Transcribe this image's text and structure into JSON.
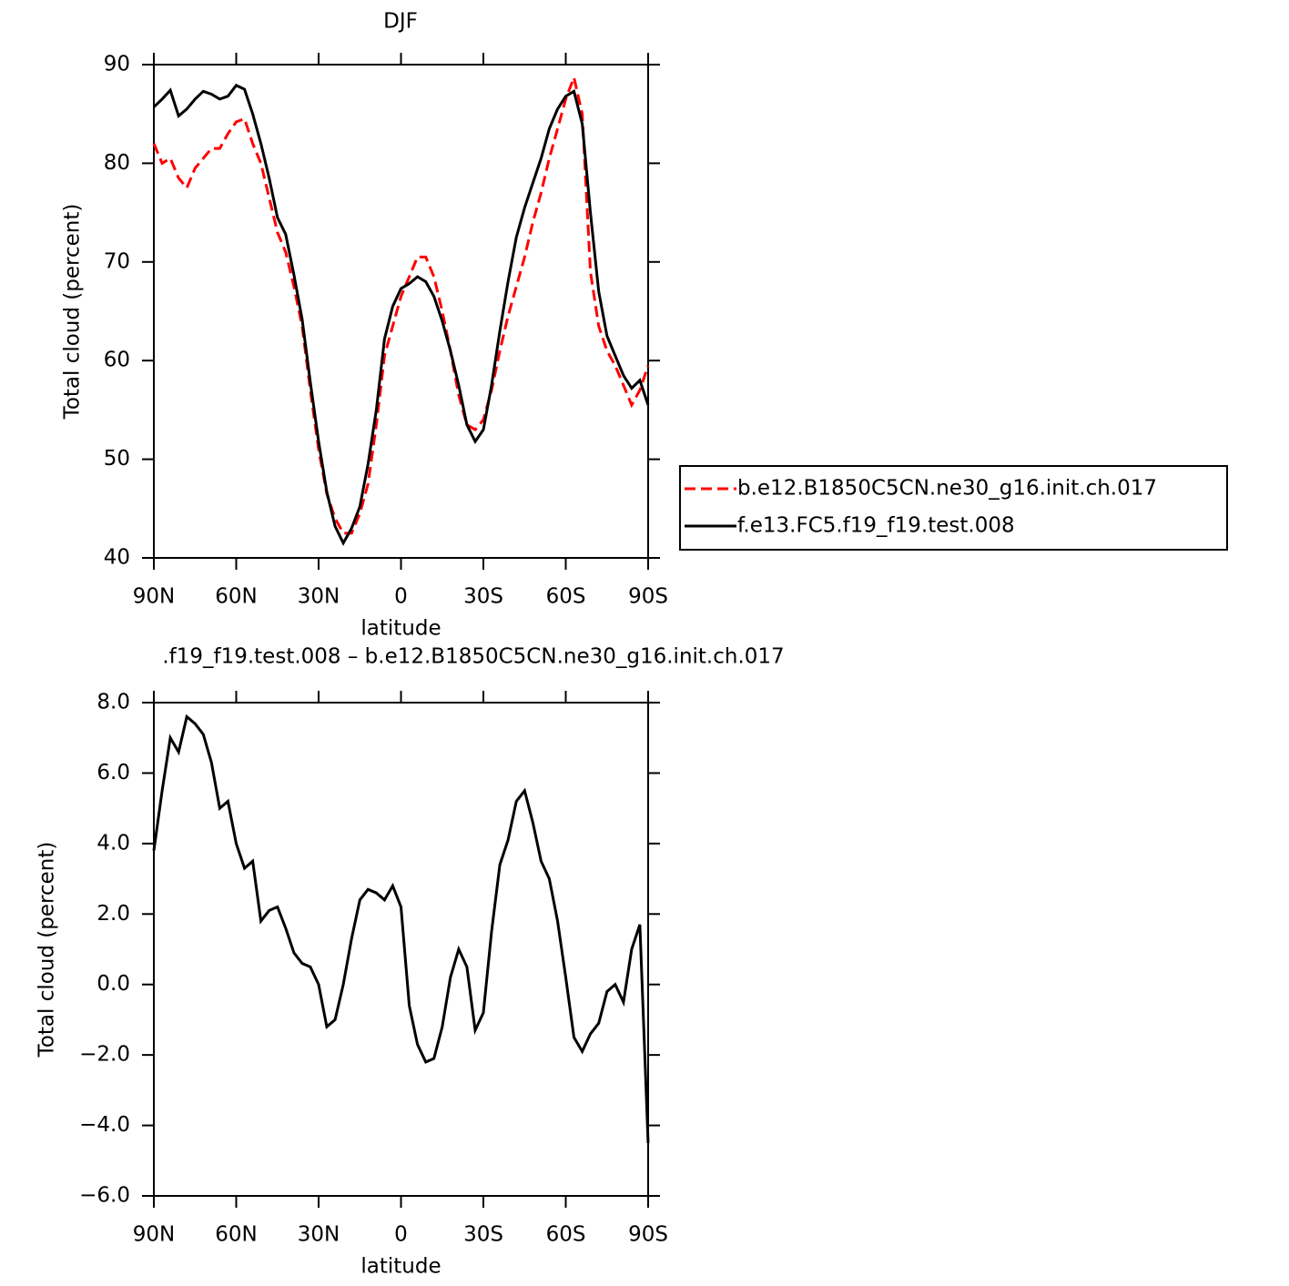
{
  "chart_data": [
    {
      "type": "line",
      "title": "DJF",
      "xlabel": "latitude",
      "ylabel": "Total cloud (percent)",
      "x": [
        90,
        87,
        84,
        81,
        78,
        75,
        72,
        69,
        66,
        63,
        60,
        57,
        54,
        51,
        48,
        45,
        42,
        39,
        36,
        33,
        30,
        27,
        24,
        21,
        18,
        15,
        12,
        9,
        6,
        3,
        0,
        -3,
        -6,
        -9,
        -12,
        -15,
        -18,
        -21,
        -24,
        -27,
        -30,
        -33,
        -36,
        -39,
        -42,
        -45,
        -48,
        -51,
        -54,
        -57,
        -60,
        -63,
        -66,
        -69,
        -72,
        -75,
        -78,
        -81,
        -84,
        -87,
        -90
      ],
      "xlim": [
        90,
        -90
      ],
      "xticks": [
        {
          "value": 90,
          "label": "90N"
        },
        {
          "value": 60,
          "label": "60N"
        },
        {
          "value": 30,
          "label": "30N"
        },
        0,
        {
          "value": -30,
          "label": "30S"
        },
        {
          "value": -60,
          "label": "60S"
        },
        {
          "value": -90,
          "label": "90S"
        }
      ],
      "ylim": [
        40,
        90
      ],
      "yticks": [
        40,
        50,
        60,
        70,
        80,
        90
      ],
      "legend": "right",
      "series": [
        {
          "name": "b.e12.B1850C5CN.ne30_g16.init.ch.017",
          "color": "#ff0000",
          "dashed": true,
          "values": [
            82,
            80,
            80.5,
            78.5,
            77.5,
            79.5,
            80.5,
            81.5,
            81.5,
            83,
            84.2,
            84.5,
            82,
            80,
            76.5,
            73,
            71,
            67.5,
            63.5,
            57,
            51,
            46.5,
            44,
            42.5,
            42.5,
            44.5,
            47.5,
            53.5,
            60.5,
            63.5,
            66.5,
            68.5,
            70.5,
            70.5,
            68.5,
            65,
            61,
            56.5,
            53.5,
            53,
            54,
            57,
            61,
            64.5,
            67.5,
            70.5,
            74,
            77,
            80.5,
            83.5,
            86.5,
            88.7,
            85,
            69,
            63.5,
            61,
            59.5,
            57.5,
            55.5,
            57,
            59.5
          ]
        },
        {
          "name": "f.e13.FC5.f19_f19.test.008",
          "color": "#000000",
          "dashed": false,
          "values": [
            85.7,
            86.5,
            87.4,
            84.8,
            85.5,
            86.5,
            87.3,
            87,
            86.5,
            86.8,
            87.9,
            87.5,
            85,
            82,
            78.5,
            74.5,
            72.8,
            68.7,
            64.2,
            57.8,
            51.8,
            46.7,
            43.2,
            41.5,
            43,
            45.2,
            49.5,
            55,
            62.2,
            65.5,
            67.3,
            67.8,
            68.5,
            68,
            66.5,
            64,
            61,
            57.5,
            53.5,
            51.8,
            53,
            57.5,
            63,
            68,
            72.5,
            75.5,
            78,
            80.5,
            83.5,
            85.5,
            86.8,
            87.3,
            84,
            75,
            67,
            62.5,
            60.5,
            58.5,
            57.2,
            58,
            55.5
          ]
        }
      ]
    },
    {
      "type": "line",
      "title": ".f19_f19.test.008 – b.e12.B1850C5CN.ne30_g16.init.ch.017",
      "xlabel": "latitude",
      "ylabel": "Total cloud (percent)",
      "x": [
        90,
        87,
        84,
        81,
        78,
        75,
        72,
        69,
        66,
        63,
        60,
        57,
        54,
        51,
        48,
        45,
        42,
        39,
        36,
        33,
        30,
        27,
        24,
        21,
        18,
        15,
        12,
        9,
        6,
        3,
        0,
        -3,
        -6,
        -9,
        -12,
        -15,
        -18,
        -21,
        -24,
        -27,
        -30,
        -33,
        -36,
        -39,
        -42,
        -45,
        -48,
        -51,
        -54,
        -57,
        -60,
        -63,
        -66,
        -69,
        -72,
        -75,
        -78,
        -81,
        -84,
        -87,
        -90
      ],
      "xlim": [
        90,
        -90
      ],
      "xticks": [
        {
          "value": 90,
          "label": "90N"
        },
        {
          "value": 60,
          "label": "60N"
        },
        {
          "value": 30,
          "label": "30N"
        },
        0,
        {
          "value": -30,
          "label": "30S"
        },
        {
          "value": -60,
          "label": "60S"
        },
        {
          "value": -90,
          "label": "90S"
        }
      ],
      "ylim": [
        -6,
        8
      ],
      "yticks": [
        {
          "value": -6,
          "label": "−6.0"
        },
        {
          "value": -4,
          "label": "−4.0"
        },
        {
          "value": -2,
          "label": "−2.0"
        },
        {
          "value": 0,
          "label": "0.0"
        },
        {
          "value": 2,
          "label": "2.0"
        },
        {
          "value": 4,
          "label": "4.0"
        },
        {
          "value": 6,
          "label": "6.0"
        },
        {
          "value": 8,
          "label": "8.0"
        }
      ],
      "series": [
        {
          "color": "#000000",
          "dashed": false,
          "values": [
            3.8,
            5.5,
            7,
            6.6,
            7.6,
            7.4,
            7.1,
            6.3,
            5,
            5.2,
            4,
            3.3,
            3.5,
            1.8,
            2.1,
            2.2,
            1.6,
            0.9,
            0.6,
            0.5,
            0,
            -1.2,
            -1,
            0,
            1.3,
            2.4,
            2.7,
            2.6,
            2.4,
            2.8,
            2.2,
            -0.6,
            -1.7,
            -2.2,
            -2.1,
            -1.2,
            0.2,
            1,
            0.5,
            -1.3,
            -0.8,
            1.5,
            3.4,
            4.1,
            5.2,
            5.5,
            4.6,
            3.5,
            3,
            1.8,
            0.2,
            -1.5,
            -1.9,
            -1.4,
            -1.1,
            -0.2,
            0,
            -0.5,
            1,
            1.7,
            -4.5
          ]
        }
      ]
    }
  ]
}
